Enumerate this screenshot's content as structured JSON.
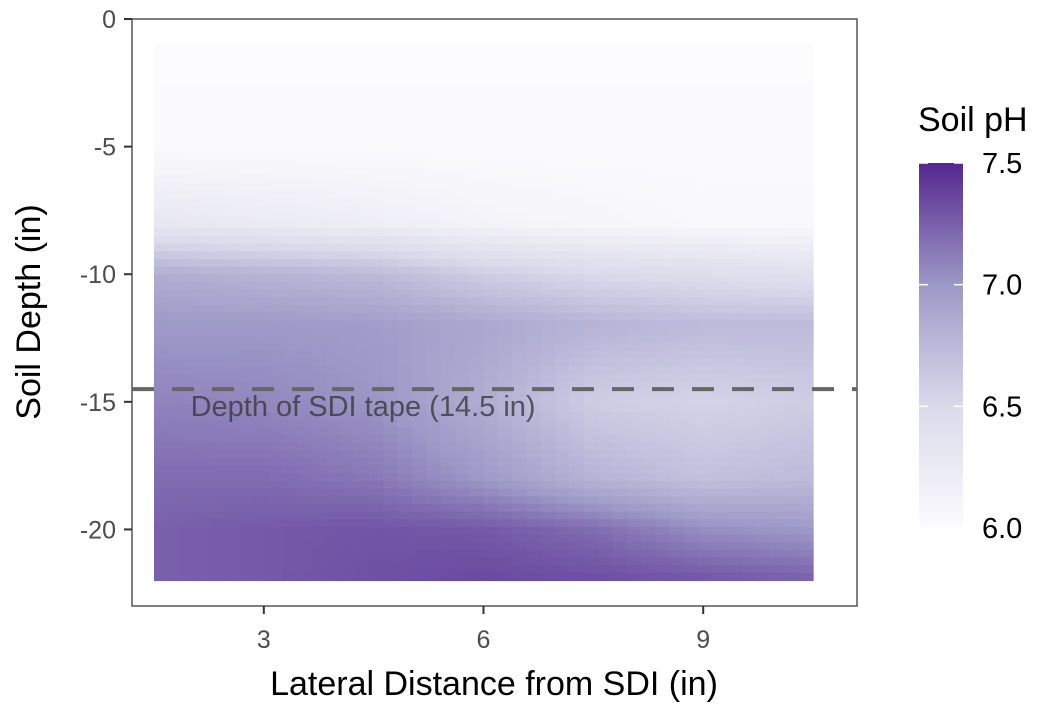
{
  "chart_data": {
    "type": "heatmap",
    "title": "",
    "xlabel": "Lateral Distance from SDI (in)",
    "ylabel": "Soil Depth (in)",
    "xlim": [
      1.2,
      11.1
    ],
    "ylim": [
      -23,
      0
    ],
    "x_ticks": [
      3,
      6,
      9
    ],
    "y_ticks": [
      0,
      -5,
      -10,
      -15,
      -20
    ],
    "grid": false,
    "data_extent": {
      "x": [
        1.5,
        10.5
      ],
      "y": [
        -22,
        -1
      ]
    },
    "grid_x": [
      1.5,
      3,
      4.5,
      6,
      7.5,
      9,
      10.5
    ],
    "grid_y": [
      -1,
      -5,
      -8,
      -10,
      -12,
      -15,
      -18,
      -20,
      -22
    ],
    "ph_values": [
      [
        6.0,
        6.0,
        6.0,
        6.0,
        6.0,
        6.0,
        6.0
      ],
      [
        6.02,
        6.02,
        6.02,
        6.02,
        6.02,
        6.02,
        6.02
      ],
      [
        6.3,
        6.25,
        6.2,
        6.12,
        6.08,
        6.05,
        6.05
      ],
      [
        6.85,
        6.8,
        6.75,
        6.6,
        6.5,
        6.45,
        6.4
      ],
      [
        7.0,
        7.0,
        6.98,
        6.9,
        6.8,
        6.75,
        6.75
      ],
      [
        7.1,
        7.08,
        7.02,
        6.85,
        6.6,
        6.55,
        6.6
      ],
      [
        7.2,
        7.2,
        7.15,
        7.0,
        6.8,
        6.7,
        6.75
      ],
      [
        7.25,
        7.28,
        7.3,
        7.28,
        7.2,
        7.05,
        7.0
      ],
      [
        7.25,
        7.28,
        7.32,
        7.35,
        7.33,
        7.3,
        7.25
      ]
    ],
    "legend": {
      "title": "Soil pH",
      "labels": [
        "7.5",
        "7.0",
        "6.5",
        "6.0"
      ],
      "values": [
        7.5,
        7.0,
        6.5,
        6.0
      ],
      "placement": "right"
    },
    "colors": {
      "low": "#fcfbfd",
      "mid": "#9e9ac8",
      "high": "#54278f"
    },
    "reference_line": {
      "y": -14.5,
      "style": "dashed",
      "color": "#666666",
      "label": "Depth of SDI tape (14.5 in)"
    }
  }
}
